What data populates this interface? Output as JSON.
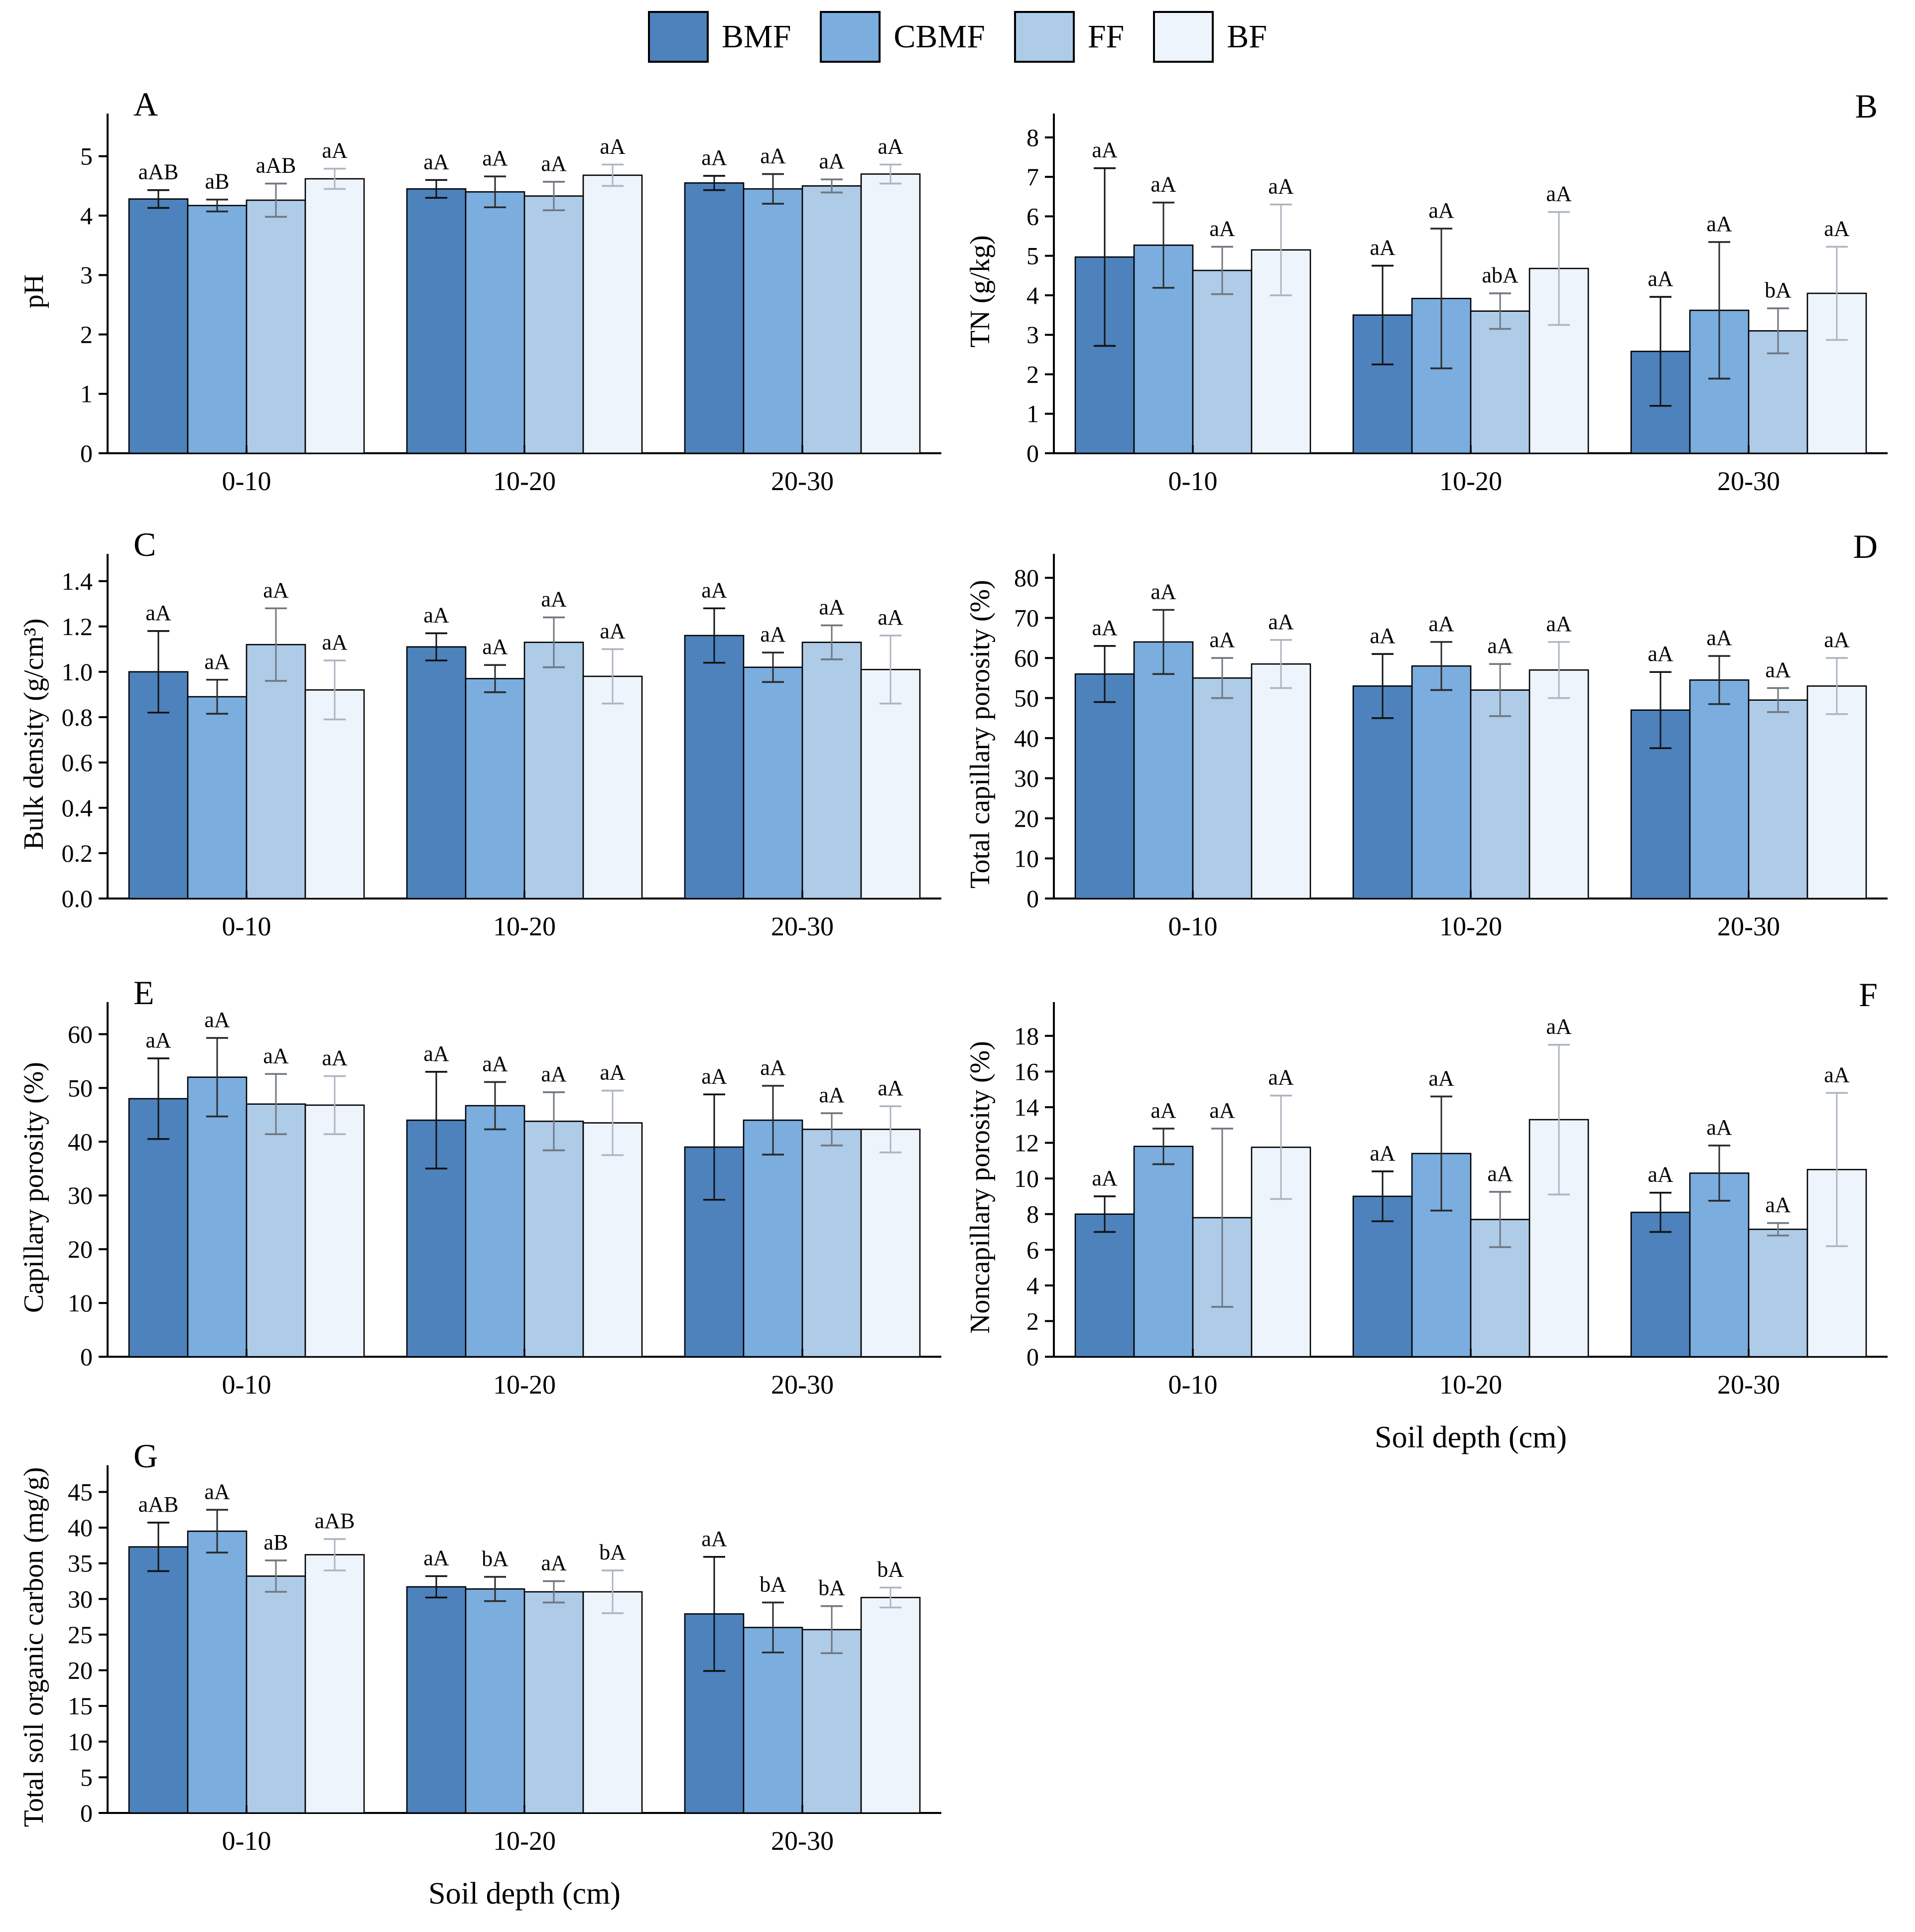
{
  "figure_title": "",
  "legend": {
    "entries": [
      {
        "label": "BMF",
        "color": "#4d82bc"
      },
      {
        "label": "CBMF",
        "color": "#7badde"
      },
      {
        "label": "FF",
        "color": "#aecbe8"
      },
      {
        "label": "BF",
        "color": "#eef4fc"
      }
    ]
  },
  "error_bar_colors": [
    "#111111",
    "#2b2b2b",
    "#70777f",
    "#aeb5c0"
  ],
  "chart_data": [
    {
      "type": "bar",
      "letter": "A",
      "letter_side": "left",
      "ylabel": "pH",
      "xlabel": "",
      "ylim": [
        0,
        5.45
      ],
      "yticks": [
        0,
        1,
        2,
        3,
        4,
        5
      ],
      "ydec": 0,
      "categories": [
        "0-10",
        "10-20",
        "20-30"
      ],
      "series": [
        {
          "name": "BMF",
          "values": [
            4.28,
            4.45,
            4.55
          ],
          "errors": [
            0.15,
            0.15,
            0.12
          ],
          "sig": [
            "aAB",
            "aA",
            "aA"
          ]
        },
        {
          "name": "CBMF",
          "values": [
            4.17,
            4.4,
            4.45
          ],
          "errors": [
            0.1,
            0.26,
            0.25
          ],
          "sig": [
            "aB",
            "aA",
            "aA"
          ]
        },
        {
          "name": "FF",
          "values": [
            4.26,
            4.33,
            4.5
          ],
          "errors": [
            0.28,
            0.24,
            0.11
          ],
          "sig": [
            "aAB",
            "aA",
            "aA"
          ]
        },
        {
          "name": "BF",
          "values": [
            4.62,
            4.68,
            4.7
          ],
          "errors": [
            0.17,
            0.18,
            0.16
          ],
          "sig": [
            "aA",
            "aA",
            "aA"
          ]
        }
      ]
    },
    {
      "type": "bar",
      "letter": "B",
      "letter_side": "right",
      "ylabel": "TN (g/kg)",
      "xlabel": "",
      "ylim": [
        0,
        8.2
      ],
      "yticks": [
        0,
        1,
        2,
        3,
        4,
        5,
        6,
        7,
        8
      ],
      "ydec": 0,
      "categories": [
        "0-10",
        "10-20",
        "20-30"
      ],
      "series": [
        {
          "name": "BMF",
          "values": [
            4.97,
            3.5,
            2.58
          ],
          "errors": [
            2.25,
            1.25,
            1.38
          ],
          "sig": [
            "aA",
            "aA",
            "aA"
          ]
        },
        {
          "name": "CBMF",
          "values": [
            5.27,
            3.92,
            3.62
          ],
          "errors": [
            1.08,
            1.77,
            1.73
          ],
          "sig": [
            "aA",
            "aA",
            "aA"
          ]
        },
        {
          "name": "FF",
          "values": [
            4.63,
            3.6,
            3.1
          ],
          "errors": [
            0.6,
            0.45,
            0.57
          ],
          "sig": [
            "aA",
            "abA",
            "bA"
          ]
        },
        {
          "name": "BF",
          "values": [
            5.15,
            4.68,
            4.05
          ],
          "errors": [
            1.15,
            1.43,
            1.18
          ],
          "sig": [
            "aA",
            "aA",
            "aA"
          ]
        }
      ]
    },
    {
      "type": "bar",
      "letter": "C",
      "letter_side": "left",
      "ylabel": "Bulk density (g/cm³)",
      "xlabel": "",
      "ylim": [
        0,
        1.45
      ],
      "yticks": [
        0.0,
        0.2,
        0.4,
        0.6,
        0.8,
        1.0,
        1.2,
        1.4
      ],
      "ydec": 1,
      "categories": [
        "0-10",
        "10-20",
        "20-30"
      ],
      "series": [
        {
          "name": "BMF",
          "values": [
            1.0,
            1.11,
            1.16
          ],
          "errors": [
            0.18,
            0.06,
            0.12
          ],
          "sig": [
            "aA",
            "aA",
            "aA"
          ]
        },
        {
          "name": "CBMF",
          "values": [
            0.89,
            0.97,
            1.02
          ],
          "errors": [
            0.075,
            0.06,
            0.065
          ],
          "sig": [
            "aA",
            "aA",
            "aA"
          ]
        },
        {
          "name": "FF",
          "values": [
            1.12,
            1.13,
            1.13
          ],
          "errors": [
            0.16,
            0.11,
            0.075
          ],
          "sig": [
            "aA",
            "aA",
            "aA"
          ]
        },
        {
          "name": "BF",
          "values": [
            0.92,
            0.98,
            1.01
          ],
          "errors": [
            0.13,
            0.12,
            0.15
          ],
          "sig": [
            "aA",
            "aA",
            "aA"
          ]
        }
      ]
    },
    {
      "type": "bar",
      "letter": "D",
      "letter_side": "right",
      "ylabel": "Total capillary porosity (%)",
      "xlabel": "",
      "ylim": [
        0,
        82
      ],
      "yticks": [
        0,
        10,
        20,
        30,
        40,
        50,
        60,
        70,
        80
      ],
      "ydec": 0,
      "categories": [
        "0-10",
        "10-20",
        "20-30"
      ],
      "series": [
        {
          "name": "BMF",
          "values": [
            56,
            53,
            47
          ],
          "errors": [
            7,
            8,
            9.5
          ],
          "sig": [
            "aA",
            "aA",
            "aA"
          ]
        },
        {
          "name": "CBMF",
          "values": [
            64,
            58,
            54.5
          ],
          "errors": [
            8,
            6,
            6
          ],
          "sig": [
            "aA",
            "aA",
            "aA"
          ]
        },
        {
          "name": "FF",
          "values": [
            55,
            52,
            49.5
          ],
          "errors": [
            5,
            6.5,
            3
          ],
          "sig": [
            "aA",
            "aA",
            "aA"
          ]
        },
        {
          "name": "BF",
          "values": [
            58.5,
            57,
            53
          ],
          "errors": [
            6,
            7,
            7
          ],
          "sig": [
            "aA",
            "aA",
            "aA"
          ]
        }
      ]
    },
    {
      "type": "bar",
      "letter": "E",
      "letter_side": "left",
      "ylabel": "Capillary porosity (%)",
      "xlabel": "",
      "ylim": [
        0,
        63
      ],
      "yticks": [
        0,
        10,
        20,
        30,
        40,
        50,
        60
      ],
      "ydec": 0,
      "categories": [
        "0-10",
        "10-20",
        "20-30"
      ],
      "series": [
        {
          "name": "BMF",
          "values": [
            48,
            44,
            39
          ],
          "errors": [
            7.5,
            9,
            9.8
          ],
          "sig": [
            "aA",
            "aA",
            "aA"
          ]
        },
        {
          "name": "CBMF",
          "values": [
            52,
            46.7,
            44
          ],
          "errors": [
            7.3,
            4.4,
            6.4
          ],
          "sig": [
            "aA",
            "aA",
            "aA"
          ]
        },
        {
          "name": "FF",
          "values": [
            47,
            43.8,
            42.3
          ],
          "errors": [
            5.6,
            5.4,
            3
          ],
          "sig": [
            "aA",
            "aA",
            "aA"
          ]
        },
        {
          "name": "BF",
          "values": [
            46.8,
            43.5,
            42.3
          ],
          "errors": [
            5.4,
            6,
            4.3
          ],
          "sig": [
            "aA",
            "aA",
            "aA"
          ]
        }
      ]
    },
    {
      "type": "bar",
      "letter": "F",
      "letter_side": "right",
      "ylabel": "Noncapillary porosity (%)",
      "xlabel": "Soil depth (cm)",
      "ylim": [
        0,
        19
      ],
      "yticks": [
        0,
        2,
        4,
        6,
        8,
        10,
        12,
        14,
        16,
        18
      ],
      "ydec": 0,
      "categories": [
        "0-10",
        "10-20",
        "20-30"
      ],
      "series": [
        {
          "name": "BMF",
          "values": [
            8.0,
            9.0,
            8.1
          ],
          "errors": [
            1.0,
            1.4,
            1.1
          ],
          "sig": [
            "aA",
            "aA",
            "aA"
          ]
        },
        {
          "name": "CBMF",
          "values": [
            11.8,
            11.4,
            10.3
          ],
          "errors": [
            1.0,
            3.2,
            1.55
          ],
          "sig": [
            "aA",
            "aA",
            "aA"
          ]
        },
        {
          "name": "FF",
          "values": [
            7.8,
            7.7,
            7.15
          ],
          "errors": [
            5.0,
            1.55,
            0.35
          ],
          "sig": [
            "aA",
            "aA",
            "aA"
          ]
        },
        {
          "name": "BF",
          "values": [
            11.75,
            13.3,
            10.5
          ],
          "errors": [
            2.9,
            4.2,
            4.3
          ],
          "sig": [
            "aA",
            "aA",
            "aA"
          ]
        }
      ]
    },
    {
      "type": "bar",
      "letter": "G",
      "letter_side": "left",
      "ylabel": "Total soil organic carbon (mg/g)",
      "xlabel": "Soil depth  (cm)",
      "ylim": [
        0,
        46.5
      ],
      "yticks": [
        0,
        5,
        10,
        15,
        20,
        25,
        30,
        35,
        40,
        45
      ],
      "ydec": 0,
      "categories": [
        "0-10",
        "10-20",
        "20-30"
      ],
      "series": [
        {
          "name": "BMF",
          "values": [
            37.3,
            31.7,
            27.9
          ],
          "errors": [
            3.4,
            1.5,
            8.0
          ],
          "sig": [
            "aAB",
            "aA",
            "aA"
          ]
        },
        {
          "name": "CBMF",
          "values": [
            39.5,
            31.4,
            26.0
          ],
          "errors": [
            3.0,
            1.7,
            3.5
          ],
          "sig": [
            "aA",
            "bA",
            "bA"
          ]
        },
        {
          "name": "FF",
          "values": [
            33.2,
            31.0,
            25.7
          ],
          "errors": [
            2.2,
            1.5,
            3.3
          ],
          "sig": [
            "aB",
            "aA",
            "bA"
          ]
        },
        {
          "name": "BF",
          "values": [
            36.2,
            31.0,
            30.2
          ],
          "errors": [
            2.2,
            3.0,
            1.4
          ],
          "sig": [
            "aAB",
            "bA",
            "bA"
          ]
        }
      ]
    }
  ]
}
